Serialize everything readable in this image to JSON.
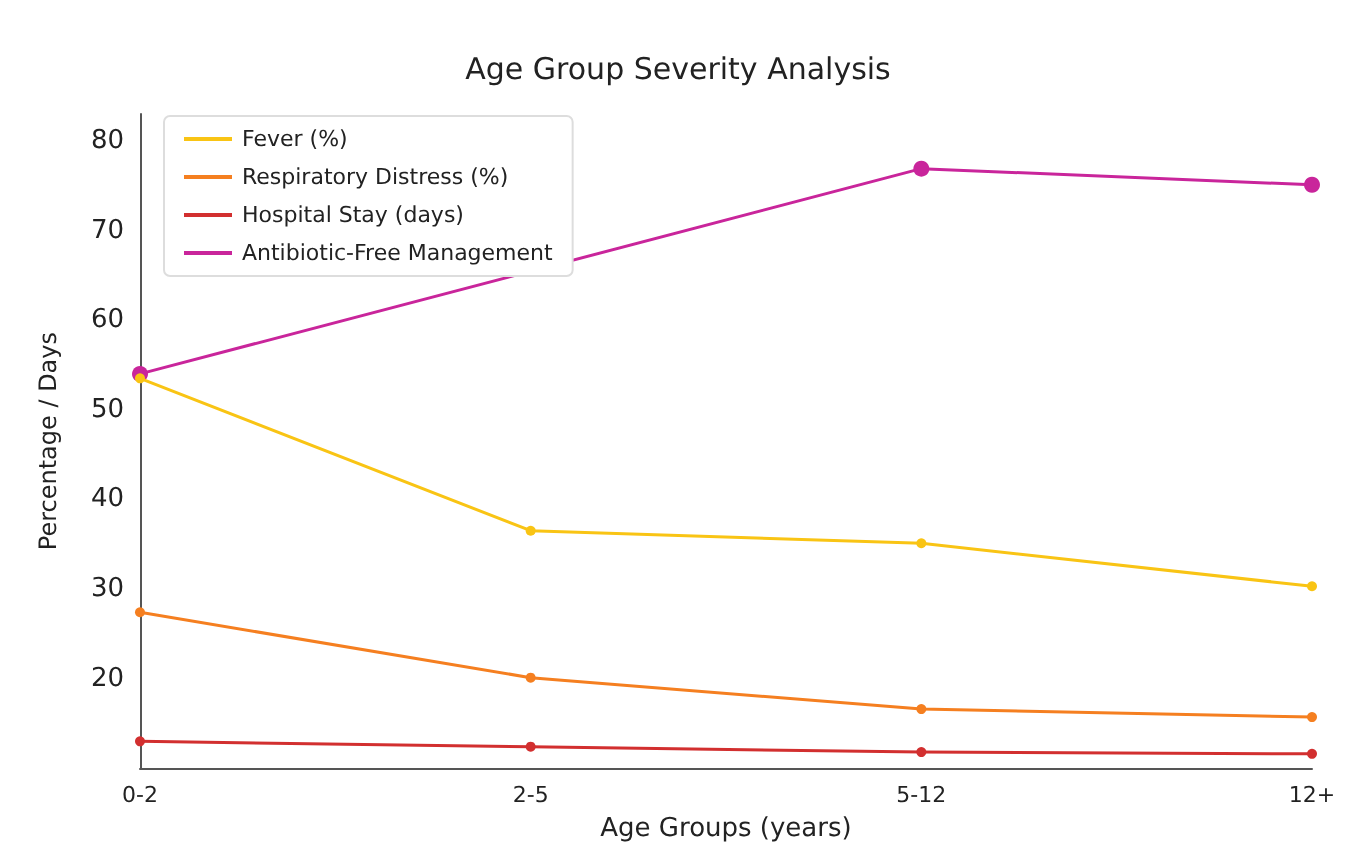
{
  "chart_data": {
    "type": "line",
    "title": "Age Group Severity Analysis",
    "xlabel": "Age Groups (years)",
    "ylabel": "Percentage / Days",
    "categories": [
      "0-2",
      "2-5",
      "5-12",
      "12+"
    ],
    "series": [
      {
        "name": "Fever (%)",
        "color": "#f9c414",
        "values": [
          53.5,
          36.5,
          35.1,
          30.3
        ]
      },
      {
        "name": "Respiratory Distress (%)",
        "color": "#f57f20",
        "values": [
          27.4,
          20.1,
          16.6,
          15.7
        ]
      },
      {
        "name": "Hospital Stay (days)",
        "color": "#d22f2f",
        "values": [
          13.0,
          12.4,
          11.8,
          11.6
        ]
      },
      {
        "name": "Antibiotic-Free Management",
        "color": "#c9259b",
        "values": [
          54.0,
          null,
          76.9,
          75.1
        ]
      }
    ],
    "ylim": [
      10,
      83
    ],
    "yticks": [
      20,
      30,
      40,
      50,
      60,
      70,
      80
    ],
    "grid": false,
    "legend": "top left",
    "marker": "circle",
    "line_style": "solid"
  }
}
